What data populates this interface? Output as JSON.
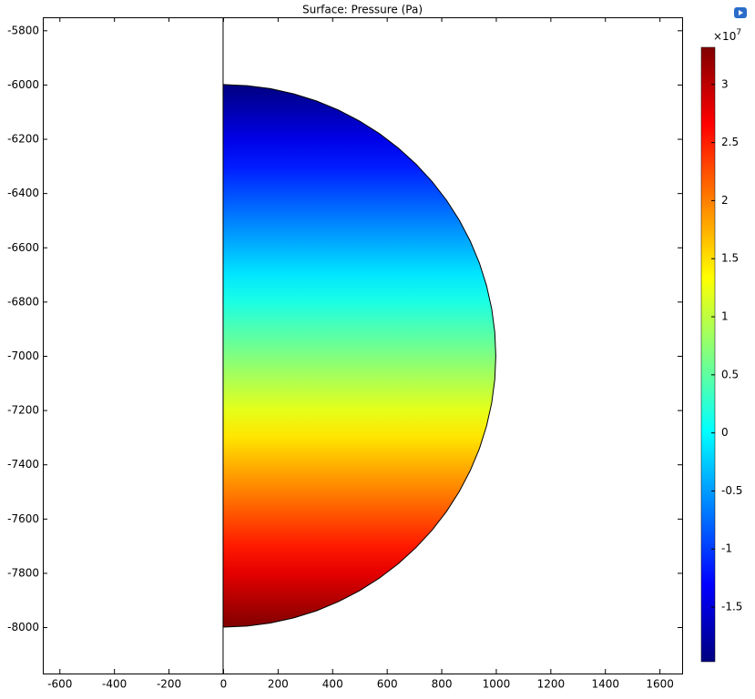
{
  "chart_data": {
    "type": "surface",
    "title": "Surface: Pressure (Pa)",
    "xlim": [
      -661,
      1683
    ],
    "xticks": [
      -600,
      -400,
      -200,
      0,
      200,
      400,
      600,
      800,
      1000,
      1200,
      1400,
      1600
    ],
    "ylim": [
      -8171,
      -5752
    ],
    "yticks": [
      -5800,
      -6000,
      -6200,
      -6400,
      -6600,
      -6800,
      -7000,
      -7200,
      -7400,
      -7600,
      -7800,
      -8000
    ],
    "domain": {
      "center": [
        0,
        -7000
      ],
      "radius": 1000
    },
    "field": {
      "y": [
        -6000,
        -8000
      ],
      "values": [
        -1.97,
        3.32
      ]
    },
    "colormap": "jet",
    "clim": [
      -1.97,
      3.32
    ],
    "cticks": [
      -1.5,
      -1,
      -0.5,
      0,
      0.5,
      1,
      1.5,
      2,
      2.5,
      3
    ],
    "colorbar_multiplier": "×10",
    "colorbar_exponent": "7"
  }
}
